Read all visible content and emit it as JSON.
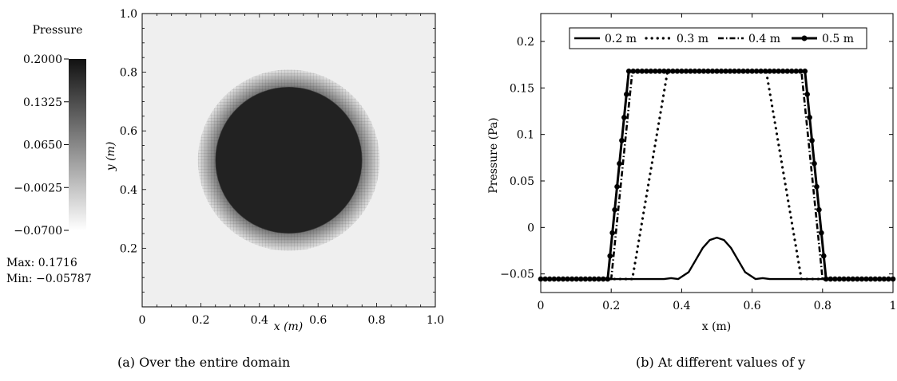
{
  "chart_data": [
    {
      "type": "heatmap",
      "caption": "(a) Over the entire domain",
      "colorbar": {
        "title": "Pressure",
        "ticks": [
          "0.2000",
          "0.1325",
          "0.0650",
          "−0.0025",
          "−0.0700"
        ],
        "range": [
          -0.07,
          0.2
        ],
        "colors": [
          "#ffffff",
          "#111111"
        ]
      },
      "max_text": "Max: 0.1716",
      "min_text": "Min: −0.05787",
      "xlabel": "x (m)",
      "ylabel": "y (m)",
      "x_ticks": [
        "0",
        "0.2",
        "0.4",
        "0.6",
        "0.8",
        "1.0"
      ],
      "y_ticks": [
        "0.2",
        "0.4",
        "0.6",
        "0.8",
        "1.0"
      ],
      "xlim": [
        0,
        1
      ],
      "ylim": [
        0,
        1
      ],
      "field": {
        "center": [
          0.5,
          0.5
        ],
        "inner_radius": 0.25,
        "outer_radius": 0.31,
        "inside_value": 0.1716,
        "outside_value": -0.0579
      },
      "background_color": "#efefef",
      "disk_color": "#222222"
    },
    {
      "type": "line",
      "caption": "(b) At different values of y",
      "xlabel": "x (m)",
      "ylabel": "Pressure (Pa)",
      "xlim": [
        0,
        1
      ],
      "ylim": [
        -0.07,
        0.23
      ],
      "x_ticks": [
        "0",
        "0.2",
        "0.4",
        "0.6",
        "0.8",
        "1"
      ],
      "y_ticks": [
        "−0.05",
        "0",
        "0.05",
        "0.1",
        "0.15",
        "0.2"
      ],
      "legend_position": "top",
      "series": [
        {
          "name": "0.2 m",
          "style": "solid",
          "points": [
            [
              0,
              -0.0555
            ],
            [
              0.35,
              -0.0555
            ],
            [
              0.37,
              -0.0545
            ],
            [
              0.39,
              -0.0555
            ],
            [
              0.42,
              -0.048
            ],
            [
              0.44,
              -0.035
            ],
            [
              0.46,
              -0.022
            ],
            [
              0.48,
              -0.0135
            ],
            [
              0.5,
              -0.011
            ],
            [
              0.52,
              -0.0135
            ],
            [
              0.54,
              -0.022
            ],
            [
              0.56,
              -0.035
            ],
            [
              0.58,
              -0.048
            ],
            [
              0.61,
              -0.0555
            ],
            [
              0.63,
              -0.0545
            ],
            [
              0.65,
              -0.0555
            ],
            [
              1,
              -0.0555
            ]
          ]
        },
        {
          "name": "0.3 m",
          "style": "dotted",
          "points": [
            [
              0,
              -0.0555
            ],
            [
              0.26,
              -0.0555
            ],
            [
              0.36,
              0.168
            ],
            [
              0.64,
              0.168
            ],
            [
              0.74,
              -0.0555
            ],
            [
              1,
              -0.0555
            ]
          ]
        },
        {
          "name": "0.4 m",
          "style": "dashdot",
          "points": [
            [
              0,
              -0.0555
            ],
            [
              0.2,
              -0.0555
            ],
            [
              0.26,
              0.168
            ],
            [
              0.74,
              0.168
            ],
            [
              0.8,
              -0.0555
            ],
            [
              1,
              -0.0555
            ]
          ]
        },
        {
          "name": "0.5 m",
          "style": "solid-markers",
          "points": [
            [
              0,
              -0.0555
            ],
            [
              0.19,
              -0.0555
            ],
            [
              0.25,
              0.168
            ],
            [
              0.75,
              0.168
            ],
            [
              0.81,
              -0.0555
            ],
            [
              1,
              -0.0555
            ]
          ]
        }
      ]
    }
  ]
}
